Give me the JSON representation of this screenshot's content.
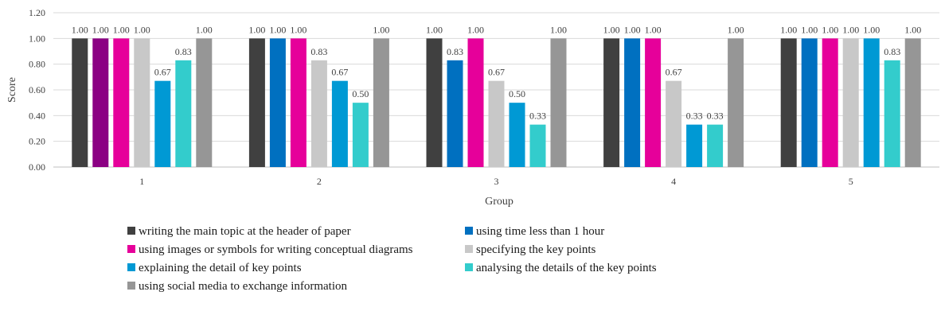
{
  "chart_data": {
    "type": "bar",
    "categories": [
      "1",
      "2",
      "3",
      "4",
      "5"
    ],
    "xlabel": "Group",
    "ylabel": "Score",
    "ylim": [
      0,
      1.2
    ],
    "yticks": [
      "0.00",
      "0.20",
      "0.40",
      "0.60",
      "0.80",
      "1.00",
      "1.20"
    ],
    "grid": true,
    "legend_position": "bottom",
    "series": [
      {
        "name": "writing the main topic at the header of paper",
        "color": "#404040",
        "values": [
          1.0,
          1.0,
          1.0,
          1.0,
          1.0
        ]
      },
      {
        "name": "using time less than 1 hour",
        "color": "#0070C0",
        "colors_by_point": [
          "#8B0083",
          "#0070C0",
          "#0070C0",
          "#0070C0",
          "#0070C0"
        ],
        "values": [
          1.0,
          1.0,
          0.83,
          1.0,
          1.0
        ]
      },
      {
        "name": "using images or symbols for writing conceptual diagrams",
        "color": "#E6009A",
        "values": [
          1.0,
          1.0,
          1.0,
          1.0,
          1.0
        ]
      },
      {
        "name": "specifying the key points",
        "color": "#C8C8C8",
        "values": [
          1.0,
          0.83,
          0.67,
          0.67,
          1.0
        ]
      },
      {
        "name": "explaining the detail of key points",
        "color": "#0099D4",
        "values": [
          0.67,
          0.67,
          0.5,
          0.33,
          1.0
        ]
      },
      {
        "name": "analysing the details of the key points",
        "color": "#33CCCC",
        "values": [
          0.83,
          0.5,
          0.33,
          0.33,
          0.83
        ]
      },
      {
        "name": "using social media to exchange information",
        "color": "#969696",
        "values": [
          1.0,
          1.0,
          1.0,
          1.0,
          1.0
        ]
      }
    ],
    "data_labels": [
      [
        "1.00",
        "1.00",
        "1.00",
        "1.00",
        "0.67",
        "0.83",
        "1.00"
      ],
      [
        "1.00",
        "1.00",
        "1.00",
        "0.83",
        "0.67",
        "0.50",
        "1.00"
      ],
      [
        "1.00",
        "0.83",
        "1.00",
        "0.67",
        "0.50",
        "0.33",
        "1.00"
      ],
      [
        "1.00",
        "1.00",
        "1.00",
        "0.67",
        "0.33",
        "0.33",
        "1.00"
      ],
      [
        "1.00",
        "1.00",
        "1.00",
        "1.00",
        "1.00",
        "0.83",
        "1.00"
      ]
    ]
  }
}
